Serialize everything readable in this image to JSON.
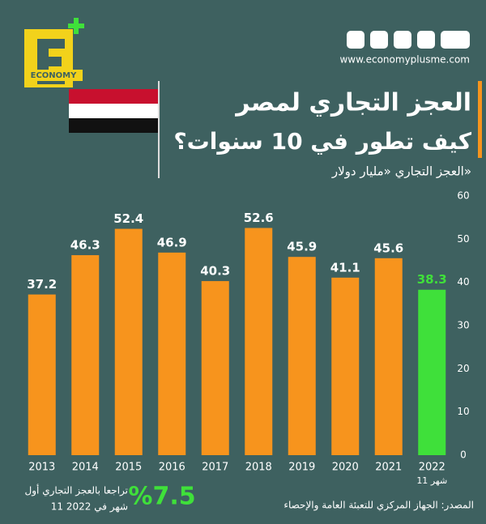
{
  "chart_data": {
    "type": "bar",
    "title": "العجز التجاري لمصر",
    "subtitle": "كيف تطور في 10 سنوات؟",
    "y_label": "العجز التجاري «مليار دولار»",
    "website": "www.economyplusme.com",
    "logo_text": "ECONOMY",
    "categories": [
      "2013",
      "2014",
      "2015",
      "2016",
      "2017",
      "2018",
      "2019",
      "2020",
      "2021",
      "2022"
    ],
    "category_note": "11 شهر",
    "values": [
      37.2,
      46.3,
      52.4,
      46.9,
      40.3,
      52.6,
      45.9,
      41.1,
      45.6,
      38.3
    ],
    "colors": [
      "#f7941d",
      "#f7941d",
      "#f7941d",
      "#f7941d",
      "#f7941d",
      "#f7941d",
      "#f7941d",
      "#f7941d",
      "#f7941d",
      "#3fe03a"
    ],
    "ylim": [
      0,
      60
    ],
    "yticks": [
      0,
      10,
      20,
      30,
      40,
      50,
      60
    ],
    "highlight": "%7.5",
    "highlight_text": [
      "تراجعا بالعجز التجاري أول",
      "11 شهر في 2022"
    ],
    "source": "المصدر: الجهاز المركزي للتعبئة العامة والإحصاء"
  }
}
